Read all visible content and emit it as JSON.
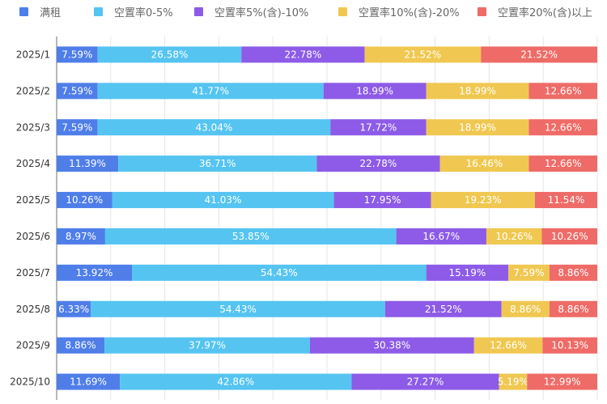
{
  "chart_data": {
    "type": "bar",
    "orientation": "horizontal",
    "stacked": true,
    "xlim": [
      0,
      100
    ],
    "grid": true,
    "legend_position": "top",
    "categories": [
      "2025/1",
      "2025/2",
      "2025/3",
      "2025/4",
      "2025/5",
      "2025/6",
      "2025/7",
      "2025/8",
      "2025/9",
      "2025/10"
    ],
    "series": [
      {
        "name": "满租",
        "color": "#4f7ee9",
        "values": [
          7.59,
          7.59,
          7.59,
          11.39,
          10.26,
          8.97,
          13.92,
          6.33,
          8.86,
          11.69
        ]
      },
      {
        "name": "空置率0-5%",
        "color": "#55c4f1",
        "values": [
          26.58,
          41.77,
          43.04,
          36.71,
          41.03,
          53.85,
          54.43,
          54.43,
          37.97,
          42.86
        ]
      },
      {
        "name": "空置率5%(含)-10%",
        "color": "#8d5be7",
        "values": [
          22.78,
          18.99,
          17.72,
          22.78,
          17.95,
          16.67,
          15.19,
          21.52,
          30.38,
          27.27
        ]
      },
      {
        "name": "空置率10%(含)-20%",
        "color": "#f0c851",
        "values": [
          21.52,
          18.99,
          18.99,
          16.46,
          19.23,
          10.26,
          7.59,
          8.86,
          12.66,
          5.19
        ]
      },
      {
        "name": "空置率20%(含)以上",
        "color": "#ee6b67",
        "values": [
          21.52,
          12.66,
          12.66,
          12.66,
          11.54,
          10.26,
          8.86,
          8.86,
          10.13,
          12.99
        ]
      }
    ]
  }
}
